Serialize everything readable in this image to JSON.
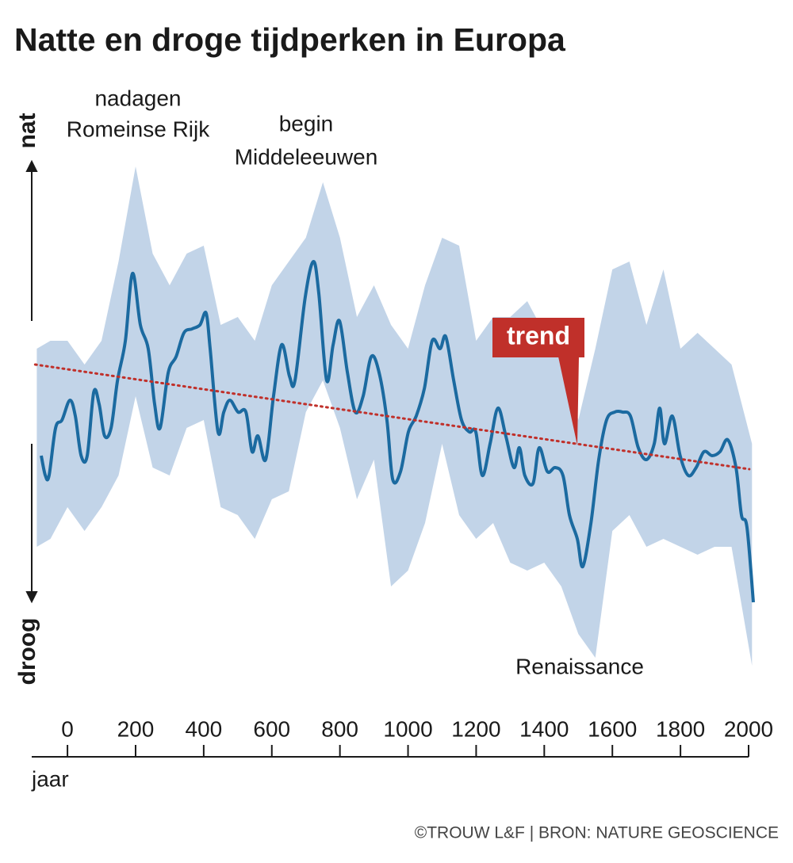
{
  "chart_data": {
    "type": "line",
    "title": "Natte en droge tijdperken in Europa",
    "y_label_top": "nat",
    "y_label_bottom": "droog",
    "x_label": "jaar",
    "source": "©TROUW L&F | BRON: NATURE GEOSCIENCE",
    "xlim": [
      -105,
      2000
    ],
    "xticks": [
      0,
      200,
      400,
      600,
      800,
      1000,
      1200,
      1400,
      1600,
      1800,
      2000
    ],
    "ylim": [
      -3,
      3.6
    ],
    "x": [
      -77,
      -65,
      -54,
      -35,
      -16,
      7,
      23,
      40,
      58,
      77,
      93,
      109,
      128,
      147,
      170,
      191,
      214,
      237,
      256,
      272,
      296,
      319,
      342,
      366,
      389,
      407,
      419,
      442,
      459,
      477,
      501,
      524,
      542,
      559,
      582,
      605,
      629,
      652,
      668,
      698,
      722,
      738,
      761,
      780,
      799,
      822,
      845,
      868,
      892,
      915,
      938,
      955,
      978,
      1001,
      1024,
      1048,
      1071,
      1094,
      1111,
      1134,
      1157,
      1180,
      1199,
      1218,
      1241,
      1264,
      1287,
      1311,
      1327,
      1343,
      1367,
      1385,
      1409,
      1432,
      1455,
      1474,
      1497,
      1513,
      1537,
      1560,
      1583,
      1607,
      1630,
      1653,
      1676,
      1700,
      1723,
      1739,
      1753,
      1776,
      1799,
      1823,
      1846,
      1869,
      1893,
      1916,
      1939,
      1963,
      1979,
      1995,
      2014
    ],
    "values": [
      -0.15,
      -0.4,
      -0.4,
      0.2,
      0.3,
      0.55,
      0.35,
      -0.15,
      -0.15,
      0.65,
      0.5,
      0.1,
      0.2,
      0.8,
      1.3,
      2.15,
      1.5,
      1.2,
      0.5,
      0.2,
      0.9,
      1.1,
      1.4,
      1.45,
      1.5,
      1.65,
      1.2,
      0.15,
      0.4,
      0.55,
      0.4,
      0.4,
      -0.1,
      0.1,
      -0.2,
      0.6,
      1.25,
      0.85,
      0.8,
      1.85,
      2.3,
      1.9,
      0.8,
      1.25,
      1.55,
      0.9,
      0.4,
      0.6,
      1.1,
      0.9,
      0.3,
      -0.45,
      -0.35,
      0.15,
      0.35,
      0.7,
      1.3,
      1.2,
      1.35,
      0.8,
      0.3,
      0.15,
      0.15,
      -0.4,
      0,
      0.45,
      0.1,
      -0.3,
      -0.05,
      -0.4,
      -0.5,
      -0.05,
      -0.35,
      -0.3,
      -0.4,
      -0.9,
      -1.2,
      -1.55,
      -1.0,
      -0.2,
      0.3,
      0.4,
      0.4,
      0.35,
      -0.05,
      -0.2,
      0.0,
      0.45,
      0.0,
      0.35,
      -0.15,
      -0.4,
      -0.3,
      -0.1,
      -0.15,
      -0.1,
      0.05,
      -0.3,
      -0.9,
      -1.05,
      -2.0
    ],
    "color": "#1b6aa0",
    "band": {
      "color": "#b3c9e2",
      "x": [
        -90,
        -50,
        0,
        50,
        100,
        150,
        200,
        250,
        300,
        350,
        400,
        450,
        500,
        550,
        600,
        650,
        700,
        750,
        800,
        850,
        900,
        950,
        1000,
        1050,
        1100,
        1150,
        1200,
        1250,
        1300,
        1350,
        1400,
        1450,
        1500,
        1550,
        1600,
        1650,
        1700,
        1750,
        1800,
        1850,
        1900,
        1950,
        2010
      ],
      "upper": [
        1.2,
        1.3,
        1.3,
        1.0,
        1.3,
        2.3,
        3.5,
        2.4,
        2.0,
        2.4,
        2.5,
        1.5,
        1.6,
        1.3,
        2.0,
        2.3,
        2.6,
        3.3,
        2.6,
        1.6,
        2.0,
        1.5,
        1.2,
        2.0,
        2.6,
        2.5,
        1.3,
        1.6,
        1.6,
        1.8,
        1.4,
        1.1,
        0.3,
        1.2,
        2.2,
        2.3,
        1.5,
        2.2,
        1.2,
        1.4,
        1.2,
        1.0,
        0.0
      ],
      "lower": [
        -1.3,
        -1.2,
        -0.8,
        -1.1,
        -0.8,
        -0.4,
        0.6,
        -0.3,
        -0.4,
        0.2,
        0.3,
        -0.8,
        -0.9,
        -1.2,
        -0.7,
        -0.6,
        0.4,
        0.8,
        0.2,
        -0.7,
        -0.2,
        -1.8,
        -1.6,
        -1.0,
        0.0,
        -0.9,
        -1.2,
        -1.0,
        -1.5,
        -1.6,
        -1.5,
        -1.8,
        -2.4,
        -2.7,
        -1.1,
        -0.9,
        -1.3,
        -1.2,
        -1.3,
        -1.4,
        -1.3,
        -1.3,
        -2.8
      ]
    },
    "trend": {
      "label": "trend",
      "color": "#c0302a",
      "x": [
        -95,
        2002
      ],
      "values": [
        1.0,
        -0.32
      ]
    },
    "annotations": [
      {
        "lines": [
          "nadagen",
          "Romeinse Rijk"
        ]
      },
      {
        "lines": [
          "begin",
          "Middeleeuwen"
        ]
      },
      {
        "lines": [
          "Renaissance"
        ]
      }
    ]
  }
}
